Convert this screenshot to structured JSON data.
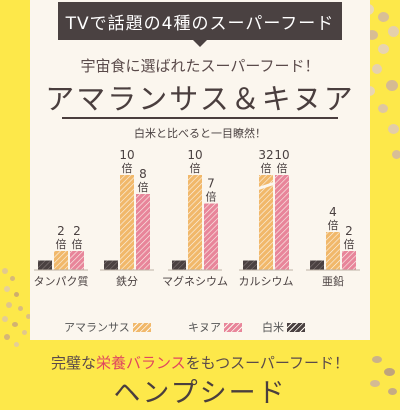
{
  "banner": {
    "text": "TVで話題の4種のスーパーフード"
  },
  "section1": {
    "subtitle": "宇宙食に選ばれたスーパーフード！",
    "title": "アマランサス＆キヌア",
    "note": "白米と比べると一目瞭然！"
  },
  "chart_data": {
    "type": "bar",
    "categories": [
      "タンパク質",
      "鉄分",
      "マグネシウム",
      "カルシウム",
      "亜鉛"
    ],
    "series": [
      {
        "name": "白米",
        "values": [
          1,
          1,
          1,
          1,
          1
        ],
        "labels": [
          "",
          "",
          "",
          "",
          ""
        ],
        "color": "#4a4141"
      },
      {
        "name": "アマランサス",
        "values": [
          2,
          10,
          10,
          32,
          4
        ],
        "labels": [
          "2倍",
          "10倍",
          "10倍",
          "32倍",
          "4倍"
        ],
        "color": "#f1b86a"
      },
      {
        "name": "キヌア",
        "values": [
          2,
          8,
          7,
          10,
          2
        ],
        "labels": [
          "2倍",
          "8倍",
          "7倍",
          "10倍",
          "2倍"
        ],
        "color": "#e8859a"
      }
    ],
    "legend_order": [
      "アマランサス",
      "キヌア",
      "白米"
    ],
    "legend_position": "bottom",
    "grid": false
  },
  "section2": {
    "subtitle_pre": "完璧な",
    "subtitle_highlight": "栄養バランス",
    "subtitle_post": "をもつスーパーフード！",
    "title": "ヘンプシード"
  }
}
